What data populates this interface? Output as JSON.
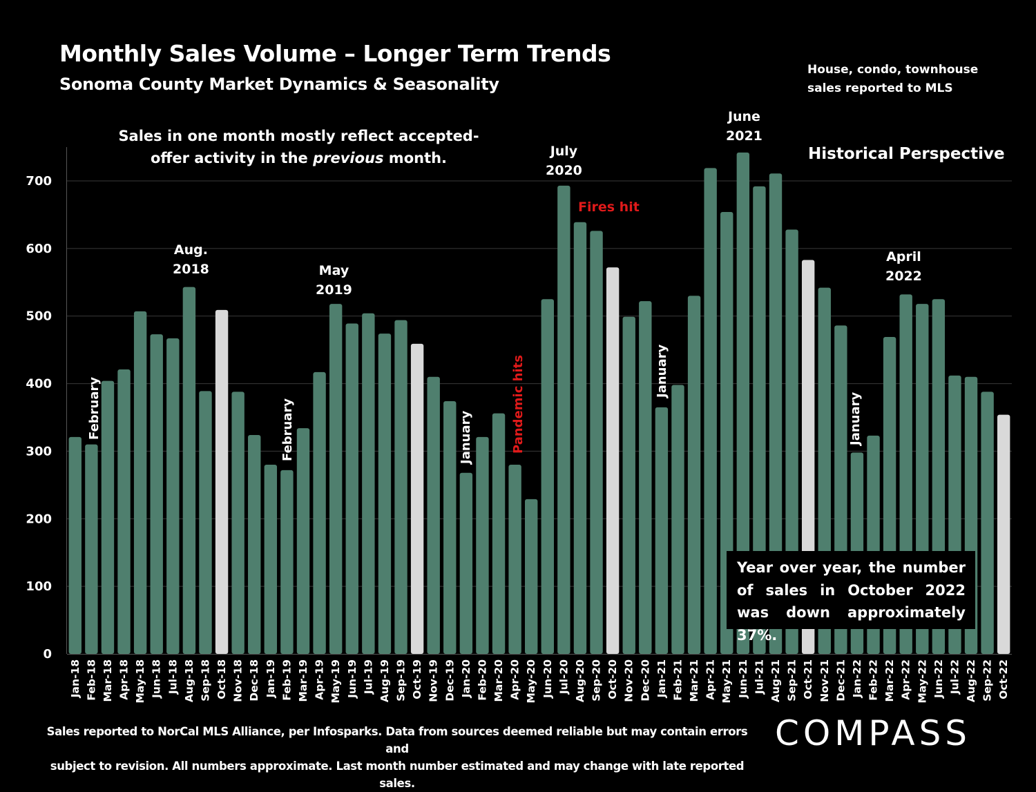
{
  "header": {
    "title": "Monthly Sales Volume – Longer Term Trends",
    "subtitle": "Sonoma County Market Dynamics & Seasonality",
    "scope_note_line1": "House, condo, townhouse",
    "scope_note_line2": "sales reported to MLS",
    "section_label": "Historical Perspective"
  },
  "offer_note": {
    "line1": "Sales in one month mostly reflect accepted-",
    "line2_pre": "offer activity in the ",
    "line2_em": "previous",
    "line2_post": " month."
  },
  "annotations": {
    "aug2018_l1": "Aug.",
    "aug2018_l2": "2018",
    "may2019_l1": "May",
    "may2019_l2": "2019",
    "jul2020_l1": "July",
    "jul2020_l2": "2020",
    "jun2021_l1": "June",
    "jun2021_l2": "2021",
    "apr2022_l1": "April",
    "apr2022_l2": "2022",
    "fires": "Fires hit",
    "pandemic": "Pandemic hits",
    "feb1": "February",
    "feb2": "February",
    "jan1": "January",
    "jan2": "January",
    "jan3": "January"
  },
  "callout": {
    "text": "Year over year, the number of sales in October 2022 was down approximately 37%."
  },
  "footer": {
    "line1": "Sales reported to NorCal MLS Alliance, per Infosparks. Data from sources deemed reliable but may contain errors and",
    "line2": "subject to revision. All numbers approximate. Last month number estimated and may change with late reported sales."
  },
  "logo": {
    "text": "COMPASS"
  },
  "colors": {
    "bar": "#4f7f6e",
    "highlight_bar": "#d9d9d9",
    "gridline": "#3a3a3a",
    "annotation_red": "#e01a1a",
    "background": "#000000"
  },
  "chart_data": {
    "type": "bar",
    "title": "Monthly Sales Volume – Longer Term Trends",
    "subtitle": "Sonoma County Market Dynamics & Seasonality",
    "xlabel": "",
    "ylabel": "",
    "ylim": [
      0,
      750
    ],
    "yticks": [
      0,
      100,
      200,
      300,
      400,
      500,
      600,
      700
    ],
    "grid": true,
    "legend": "none",
    "categories": [
      "Jan-18",
      "Feb-18",
      "Mar-18",
      "Apr-18",
      "May-18",
      "Jun-18",
      "Jul-18",
      "Aug-18",
      "Sep-18",
      "Oct-18",
      "Nov-18",
      "Dec-18",
      "Jan-19",
      "Feb-19",
      "Mar-19",
      "Apr-19",
      "May-19",
      "Jun-19",
      "Jul-19",
      "Aug-19",
      "Sep-19",
      "Oct-19",
      "Nov-19",
      "Dec-19",
      "Jan-20",
      "Feb-20",
      "Mar-20",
      "Apr-20",
      "May-20",
      "Jun-20",
      "Jul-20",
      "Aug-20",
      "Sep-20",
      "Oct-20",
      "Nov-20",
      "Dec-20",
      "Jan-21",
      "Feb-21",
      "Mar-21",
      "Apr-21",
      "May-21",
      "Jun-21",
      "Jul-21",
      "Aug-21",
      "Sep-21",
      "Oct-21",
      "Nov-21",
      "Dec-21",
      "Jan-22",
      "Feb-22",
      "Mar-22",
      "Apr-22",
      "May-22",
      "Jun-22",
      "Jul-22",
      "Aug-22",
      "Sep-22",
      "Oct-22"
    ],
    "values": [
      321,
      310,
      404,
      421,
      507,
      473,
      467,
      543,
      389,
      509,
      388,
      324,
      280,
      272,
      334,
      417,
      518,
      489,
      504,
      474,
      494,
      459,
      410,
      374,
      268,
      321,
      356,
      280,
      229,
      525,
      693,
      639,
      626,
      572,
      499,
      522,
      365,
      398,
      530,
      719,
      654,
      742,
      692,
      711,
      628,
      583,
      542,
      486,
      298,
      323,
      469,
      532,
      518,
      525,
      412,
      410,
      388,
      354
    ],
    "highlighted": [
      "Oct-18",
      "Oct-19",
      "Oct-20",
      "Oct-21",
      "Oct-22"
    ]
  }
}
